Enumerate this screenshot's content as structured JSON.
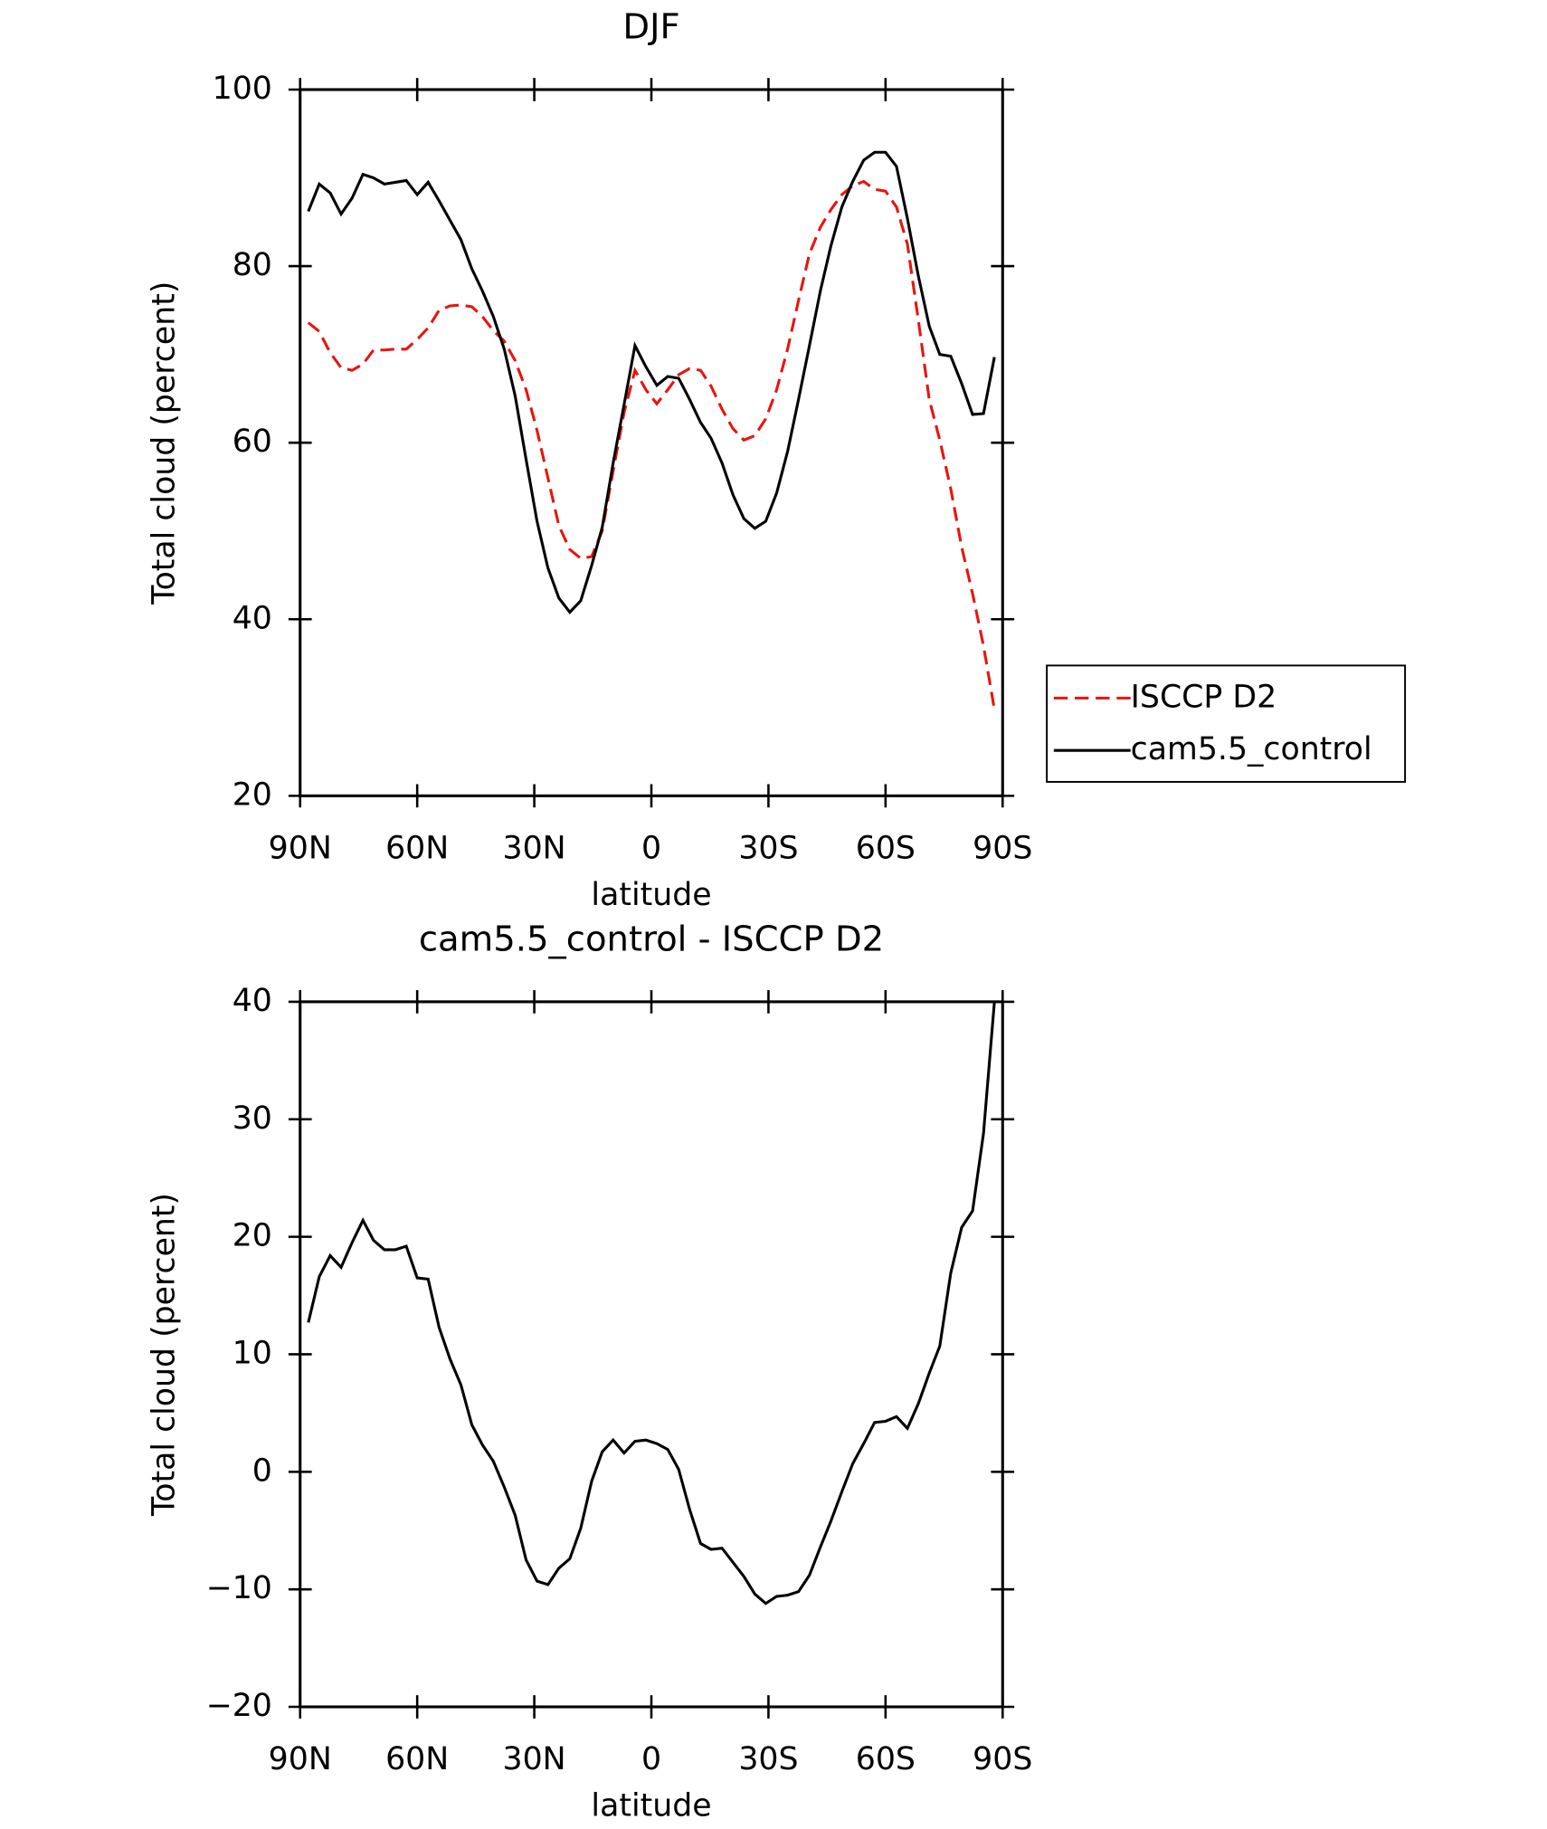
{
  "chart_data": [
    {
      "type": "line",
      "title": "DJF",
      "x_label": "latitude",
      "y_label": "Total cloud (percent)",
      "x": [
        87.9,
        85.1,
        82.3,
        79.5,
        76.7,
        73.9,
        71.2,
        68.4,
        65.6,
        62.8,
        60.0,
        57.2,
        54.4,
        51.6,
        48.8,
        46.0,
        43.3,
        40.5,
        37.7,
        34.9,
        32.1,
        29.3,
        26.5,
        23.7,
        20.9,
        18.1,
        15.3,
        12.6,
        9.8,
        7.0,
        4.2,
        1.4,
        -1.4,
        -4.2,
        -7.0,
        -9.8,
        -12.6,
        -15.3,
        -18.1,
        -20.9,
        -23.7,
        -26.5,
        -29.3,
        -32.1,
        -34.9,
        -37.7,
        -40.5,
        -43.3,
        -46.0,
        -48.8,
        -51.6,
        -54.4,
        -57.2,
        -60.0,
        -62.8,
        -65.6,
        -68.4,
        -71.2,
        -73.9,
        -76.7,
        -79.5,
        -82.3,
        -85.1,
        -87.9
      ],
      "series": [
        {
          "name": "ISCCP D2",
          "color": "#e8140f",
          "line_style": "dashed",
          "values": [
            73.6,
            72.6,
            70.2,
            68.5,
            68.2,
            68.9,
            70.5,
            70.5,
            70.6,
            70.6,
            71.7,
            73.0,
            75.0,
            75.5,
            75.6,
            75.4,
            74.3,
            72.7,
            71.5,
            69.3,
            66.0,
            61.4,
            56.0,
            50.6,
            47.9,
            46.9,
            47.1,
            50.0,
            56.8,
            63.4,
            68.2,
            66.0,
            64.4,
            66.0,
            67.7,
            68.4,
            68.2,
            66.4,
            63.8,
            61.6,
            60.3,
            60.8,
            62.7,
            66.0,
            70.6,
            76.1,
            81.4,
            84.4,
            86.4,
            88.1,
            89.1,
            89.6,
            88.7,
            88.5,
            86.7,
            82.5,
            73.9,
            64.9,
            60.3,
            54.8,
            48.2,
            42.9,
            37.0,
            29.8
          ]
        },
        {
          "name": "cam5.5_control",
          "color": "#000000",
          "line_style": "solid",
          "values": [
            86.2,
            89.3,
            88.3,
            85.9,
            87.7,
            90.4,
            90.0,
            89.3,
            89.5,
            89.7,
            88.1,
            89.5,
            87.4,
            85.2,
            83.0,
            79.7,
            77.2,
            74.3,
            70.6,
            65.3,
            58.1,
            51.1,
            45.8,
            42.4,
            40.8,
            42.1,
            46.1,
            50.4,
            57.7,
            64.3,
            71.0,
            68.6,
            66.5,
            67.5,
            67.3,
            64.9,
            62.3,
            60.5,
            57.7,
            54.1,
            51.4,
            50.3,
            51.1,
            54.3,
            59.0,
            64.9,
            71.0,
            77.2,
            82.3,
            86.7,
            89.6,
            92.0,
            92.9,
            92.9,
            91.3,
            85.4,
            78.9,
            73.2,
            70.0,
            69.8,
            66.7,
            63.2,
            63.3,
            69.7
          ]
        }
      ],
      "xlim": [
        90,
        -90
      ],
      "xticks": [
        {
          "value": 90,
          "label": "90N"
        },
        {
          "value": 60,
          "label": "60N"
        },
        {
          "value": 30,
          "label": "30N"
        },
        0,
        {
          "value": -30,
          "label": "30S"
        },
        {
          "value": -60,
          "label": "60S"
        },
        {
          "value": -90,
          "label": "90S"
        }
      ],
      "ylim": [
        20,
        100
      ],
      "yticks": [
        20,
        40,
        60,
        80,
        100
      ],
      "legend": "right"
    },
    {
      "type": "line",
      "title": "cam5.5_control - ISCCP D2",
      "x_label": "latitude",
      "y_label": "Total cloud (percent)",
      "color": "#000000",
      "x": [
        87.9,
        85.1,
        82.3,
        79.5,
        76.7,
        73.9,
        71.2,
        68.4,
        65.6,
        62.8,
        60.0,
        57.2,
        54.4,
        51.6,
        48.8,
        46.0,
        43.3,
        40.5,
        37.7,
        34.9,
        32.1,
        29.3,
        26.5,
        23.7,
        20.9,
        18.1,
        15.3,
        12.6,
        9.8,
        7.0,
        4.2,
        1.4,
        -1.4,
        -4.2,
        -7.0,
        -9.8,
        -12.6,
        -15.3,
        -18.1,
        -20.9,
        -23.7,
        -26.5,
        -29.3,
        -32.1,
        -34.9,
        -37.7,
        -40.5,
        -43.3,
        -46.0,
        -48.8,
        -51.6,
        -54.4,
        -57.2,
        -60.0,
        -62.8,
        -65.6,
        -68.4,
        -71.2,
        -73.9,
        -76.7,
        -79.5,
        -82.3,
        -85.1,
        -87.9
      ],
      "values": [
        12.7,
        16.6,
        18.4,
        17.4,
        19.5,
        21.4,
        19.7,
        18.9,
        18.9,
        19.2,
        16.5,
        16.4,
        12.3,
        9.6,
        7.4,
        4.0,
        2.3,
        0.9,
        -1.3,
        -3.7,
        -7.5,
        -9.3,
        -9.6,
        -8.2,
        -7.4,
        -4.8,
        -0.8,
        1.7,
        2.7,
        1.6,
        2.6,
        2.7,
        2.4,
        1.9,
        0.2,
        -3.2,
        -6.1,
        -6.6,
        -6.5,
        -7.7,
        -8.9,
        -10.4,
        -11.2,
        -10.6,
        -10.5,
        -10.2,
        -8.8,
        -6.4,
        -4.2,
        -1.7,
        0.7,
        2.4,
        4.2,
        4.3,
        4.7,
        3.7,
        5.8,
        8.4,
        10.7,
        16.9,
        20.8,
        22.2,
        28.8,
        40.0
      ],
      "xlim": [
        90,
        -90
      ],
      "xticks": [
        {
          "value": 90,
          "label": "90N"
        },
        {
          "value": 60,
          "label": "60N"
        },
        {
          "value": 30,
          "label": "30N"
        },
        0,
        {
          "value": -30,
          "label": "30S"
        },
        {
          "value": -60,
          "label": "60S"
        },
        {
          "value": -90,
          "label": "90S"
        }
      ],
      "ylim": [
        -20,
        40
      ],
      "yticks": [
        {
          "value": -20,
          "label": "−20"
        },
        {
          "value": -10,
          "label": "−10"
        },
        0,
        10,
        20,
        30,
        40
      ]
    }
  ]
}
